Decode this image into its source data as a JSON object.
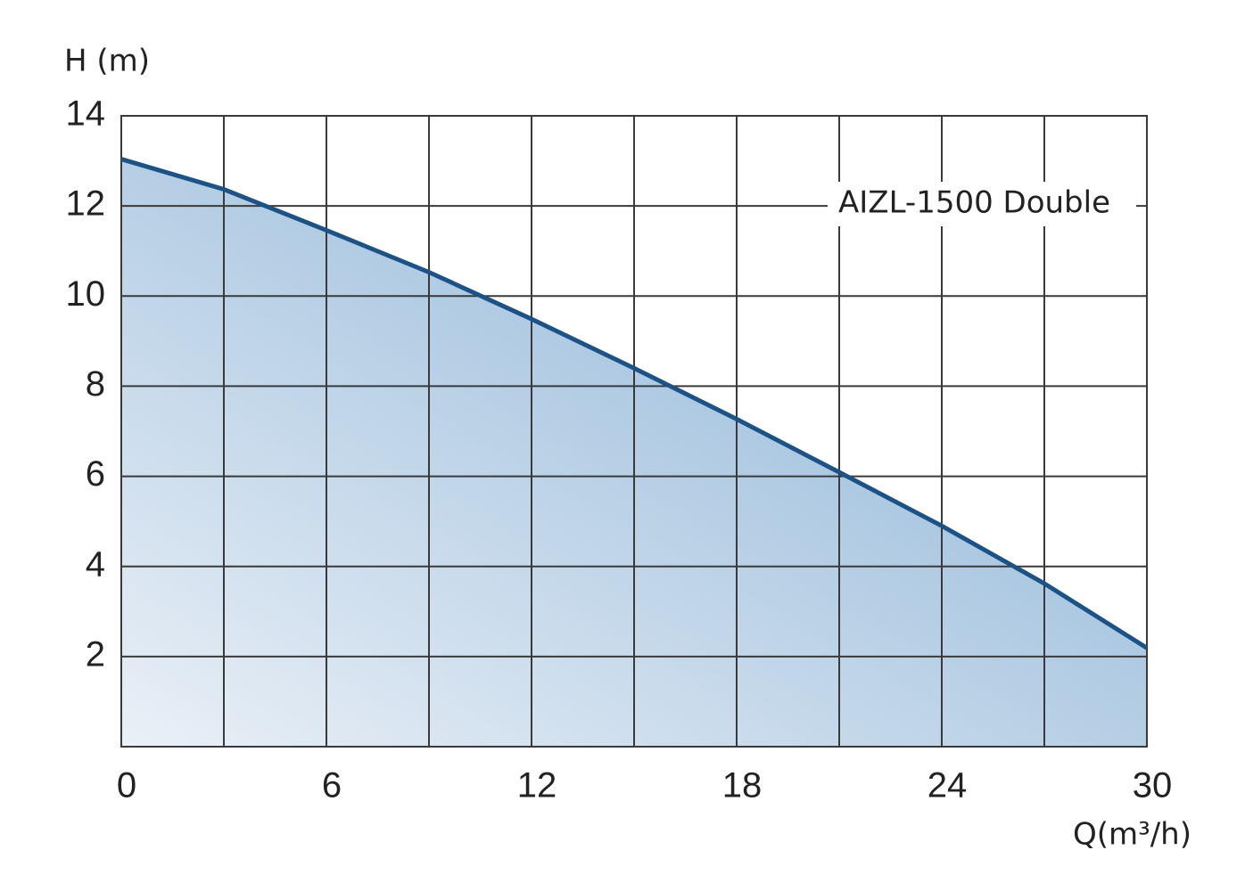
{
  "chart_data": {
    "type": "area",
    "annotation": "AIZL-1500 Double",
    "ylabel": "H (m)",
    "xlabel": "Q(m³/h)",
    "x": [
      0,
      3,
      6,
      9,
      12,
      15,
      18,
      21,
      24,
      27,
      30
    ],
    "values": [
      13.04,
      12.37,
      11.46,
      10.53,
      9.49,
      8.4,
      7.27,
      6.09,
      4.9,
      3.62,
      2.19
    ],
    "color": "#1d5286",
    "fill_colors": [
      "#eaf0f7",
      "#9cbedc"
    ],
    "xlim": [
      0,
      30
    ],
    "xticks": [
      0,
      6,
      12,
      18,
      24,
      30
    ],
    "xgrid": [
      3,
      6,
      9,
      12,
      15,
      18,
      21,
      24,
      27
    ],
    "ylim": [
      0,
      14
    ],
    "yticks": [
      2,
      4,
      6,
      8,
      10,
      12,
      14
    ],
    "grid": true
  }
}
